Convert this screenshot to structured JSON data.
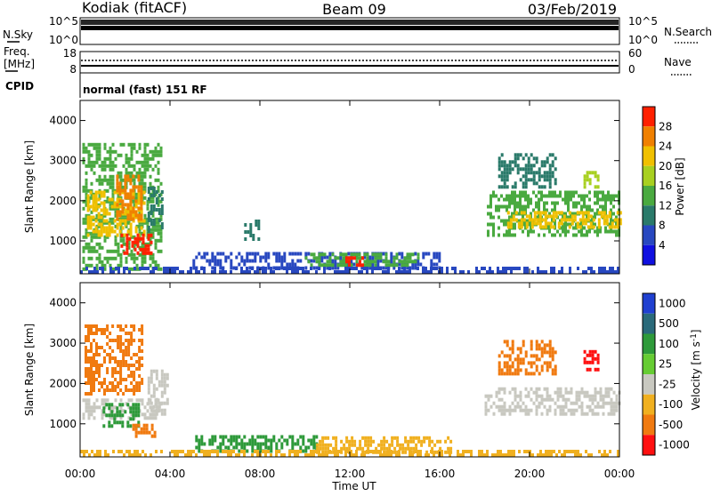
{
  "header": {
    "station": "Kodiak (fitACF)",
    "beam": "Beam 09",
    "date": "03/Feb/2019"
  },
  "noise_panel": {
    "left_label": "N.Sky",
    "right_label": "N.Search",
    "left_ticks": [
      "10^5",
      "10^0"
    ],
    "right_ticks": [
      "10^5",
      "10^0"
    ]
  },
  "freq_panel": {
    "left_label_line1": "Freq.",
    "left_label_line2": "[MHz]",
    "left_ticks": [
      "18",
      "8"
    ],
    "right_label": "Nave",
    "right_ticks": [
      "60",
      "0"
    ]
  },
  "cpid": {
    "label": "CPID",
    "value": "normal (fast) 151 RF"
  },
  "colors": {
    "power_scale": [
      "#1010e0",
      "#2848c0",
      "#2a7a6a",
      "#4aaa40",
      "#a8d020",
      "#f0c000",
      "#f08000",
      "#ff2000"
    ],
    "velocity_scale": [
      "#2040d0",
      "#2a6a7a",
      "#2e9a3a",
      "#66cc33",
      "#c8c8c0",
      "#f0b020",
      "#f07a10",
      "#ff1010"
    ]
  },
  "chart_data": [
    {
      "type": "heatmap",
      "name": "power",
      "ylabel": "Slant Range [km]",
      "ylim": [
        180,
        4500
      ],
      "yticks": [
        1000,
        2000,
        3000,
        4000
      ],
      "xlim": [
        0,
        24
      ],
      "xtick_labels": [
        "00:00",
        "04:00",
        "08:00",
        "12:00",
        "16:00",
        "20:00",
        "00:00"
      ],
      "colorbar": {
        "label": "Power [dB]",
        "range": [
          0,
          30
        ],
        "tick_labels": [
          "4",
          "8",
          "12",
          "16",
          "20",
          "24",
          "28"
        ]
      },
      "regions": [
        {
          "t0": 0.1,
          "t1": 3.6,
          "r0": 250,
          "r1": 3400,
          "v": 14
        },
        {
          "t0": 0.3,
          "t1": 2.8,
          "r0": 1100,
          "r1": 2200,
          "v": 22
        },
        {
          "t0": 1.8,
          "t1": 3.2,
          "r0": 650,
          "r1": 1100,
          "v": 28
        },
        {
          "t0": 1.6,
          "t1": 2.7,
          "r0": 1500,
          "r1": 2600,
          "v": 24
        },
        {
          "t0": 3.0,
          "t1": 3.6,
          "r0": 1200,
          "r1": 2300,
          "v": 9
        },
        {
          "t0": 5.0,
          "t1": 16.0,
          "r0": 280,
          "r1": 700,
          "v": 7
        },
        {
          "t0": 10.0,
          "t1": 15.0,
          "r0": 350,
          "r1": 650,
          "v": 14
        },
        {
          "t0": 11.8,
          "t1": 12.8,
          "r0": 350,
          "r1": 550,
          "v": 28
        },
        {
          "t0": 7.3,
          "t1": 7.9,
          "r0": 1000,
          "r1": 1450,
          "v": 8
        },
        {
          "t0": 18.1,
          "t1": 24.0,
          "r0": 1100,
          "r1": 2200,
          "v": 12
        },
        {
          "t0": 19.0,
          "t1": 24.0,
          "r0": 1300,
          "r1": 1700,
          "v": 22
        },
        {
          "t0": 18.6,
          "t1": 21.2,
          "r0": 2300,
          "r1": 3100,
          "v": 11
        },
        {
          "t0": 22.4,
          "t1": 23.1,
          "r0": 2300,
          "r1": 2700,
          "v": 17
        },
        {
          "t0": 0.0,
          "t1": 24.0,
          "r0": 180,
          "r1": 300,
          "v": 6
        }
      ]
    },
    {
      "type": "heatmap",
      "name": "velocity",
      "ylabel": "Slant Range [km]",
      "ylim": [
        180,
        4500
      ],
      "yticks": [
        1000,
        2000,
        3000,
        4000
      ],
      "xlim": [
        0,
        24
      ],
      "xtick_labels": [
        "00:00",
        "04:00",
        "08:00",
        "12:00",
        "16:00",
        "20:00",
        "00:00"
      ],
      "xlabel": "Time UT",
      "colorbar": {
        "label": "Velocity [m s^-1]",
        "tick_labels": [
          "1000",
          "500",
          "100",
          "25",
          "-25",
          "-100",
          "-500",
          "-1000"
        ]
      },
      "regions": [
        {
          "t0": 0.1,
          "t1": 3.6,
          "r0": 1100,
          "r1": 1600,
          "v": "gs"
        },
        {
          "t0": 0.2,
          "t1": 2.8,
          "r0": 1700,
          "r1": 3400,
          "v": -300
        },
        {
          "t0": 1.0,
          "t1": 2.6,
          "r0": 900,
          "r1": 1500,
          "v": 80
        },
        {
          "t0": 2.2,
          "t1": 3.3,
          "r0": 650,
          "r1": 1000,
          "v": -150
        },
        {
          "t0": 3.0,
          "t1": 3.9,
          "r0": 1200,
          "r1": 2300,
          "v": "gs"
        },
        {
          "t0": 5.0,
          "t1": 10.5,
          "r0": 280,
          "r1": 700,
          "v": 60
        },
        {
          "t0": 10.5,
          "t1": 16.5,
          "r0": 250,
          "r1": 650,
          "v": -60
        },
        {
          "t0": 18.0,
          "t1": 24.0,
          "r0": 1200,
          "r1": 1900,
          "v": "gs"
        },
        {
          "t0": 18.6,
          "t1": 21.2,
          "r0": 2200,
          "r1": 3000,
          "v": -350
        },
        {
          "t0": 22.4,
          "t1": 23.1,
          "r0": 2300,
          "r1": 2800,
          "v": -500
        },
        {
          "t0": 0.0,
          "t1": 24.0,
          "r0": 180,
          "r1": 300,
          "v": -40
        }
      ]
    }
  ]
}
